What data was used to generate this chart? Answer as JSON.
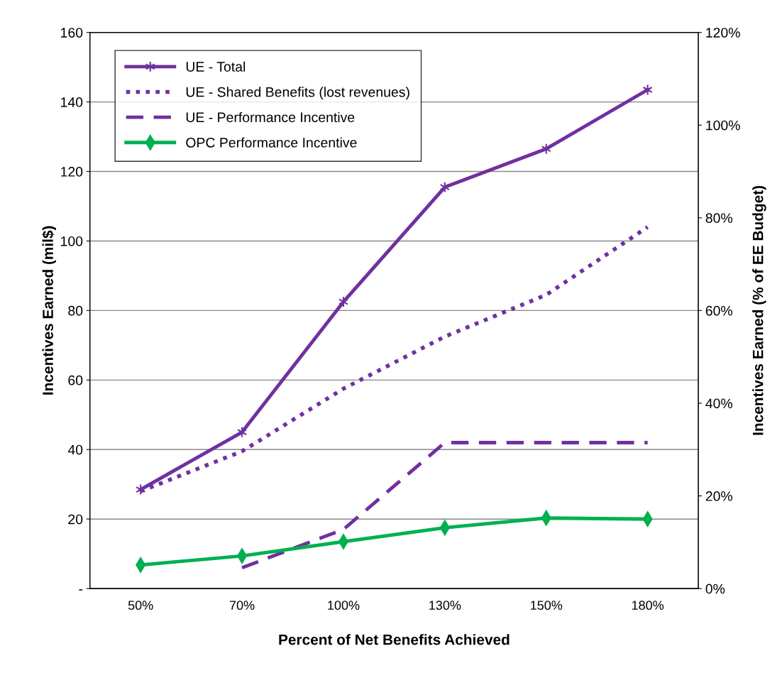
{
  "chart_data": {
    "type": "line",
    "xlabel": "Percent of Net Benefits Achieved",
    "ylabel": "Incentives Earned (mil$)",
    "y2label": "Incentives Earned (% of EE Budget)",
    "categories": [
      "50%",
      "70%",
      "100%",
      "130%",
      "150%",
      "180%"
    ],
    "series": [
      {
        "name": "UE - Total",
        "color": "#7030a0",
        "marker": "cross",
        "line_style": "solid",
        "values": [
          28.5,
          45,
          82.5,
          115.5,
          126.5,
          143.5
        ]
      },
      {
        "name": "UE - Shared Benefits (lost revenues)",
        "color": "#7030a0",
        "marker": "none",
        "line_style": "dotted",
        "values": [
          28,
          39.5,
          57.5,
          72.5,
          84.5,
          104
        ]
      },
      {
        "name": "UE - Performance Incentive",
        "color": "#7030a0",
        "marker": "none",
        "line_style": "dashed",
        "values": [
          null,
          6,
          17,
          42,
          42,
          42
        ]
      },
      {
        "name": "OPC Performance Incentive",
        "color": "#00b050",
        "marker": "diamond",
        "line_style": "solid",
        "values": [
          6.8,
          9.4,
          13.5,
          17.5,
          20.3,
          20
        ]
      }
    ],
    "ylim": [
      0,
      160
    ],
    "yticks": [
      {
        "value": 0,
        "label": "-"
      },
      20,
      40,
      60,
      80,
      100,
      120,
      140,
      160
    ],
    "y2lim": [
      0,
      120
    ],
    "y2ticks": [
      {
        "value": 0,
        "label": "0%"
      },
      {
        "value": 20,
        "label": "20%"
      },
      {
        "value": 40,
        "label": "40%"
      },
      {
        "value": 60,
        "label": "60%"
      },
      {
        "value": 80,
        "label": "80%"
      },
      {
        "value": 100,
        "label": "100%"
      },
      {
        "value": 120,
        "label": "120%"
      }
    ],
    "grid": "y",
    "legend": "top left"
  }
}
